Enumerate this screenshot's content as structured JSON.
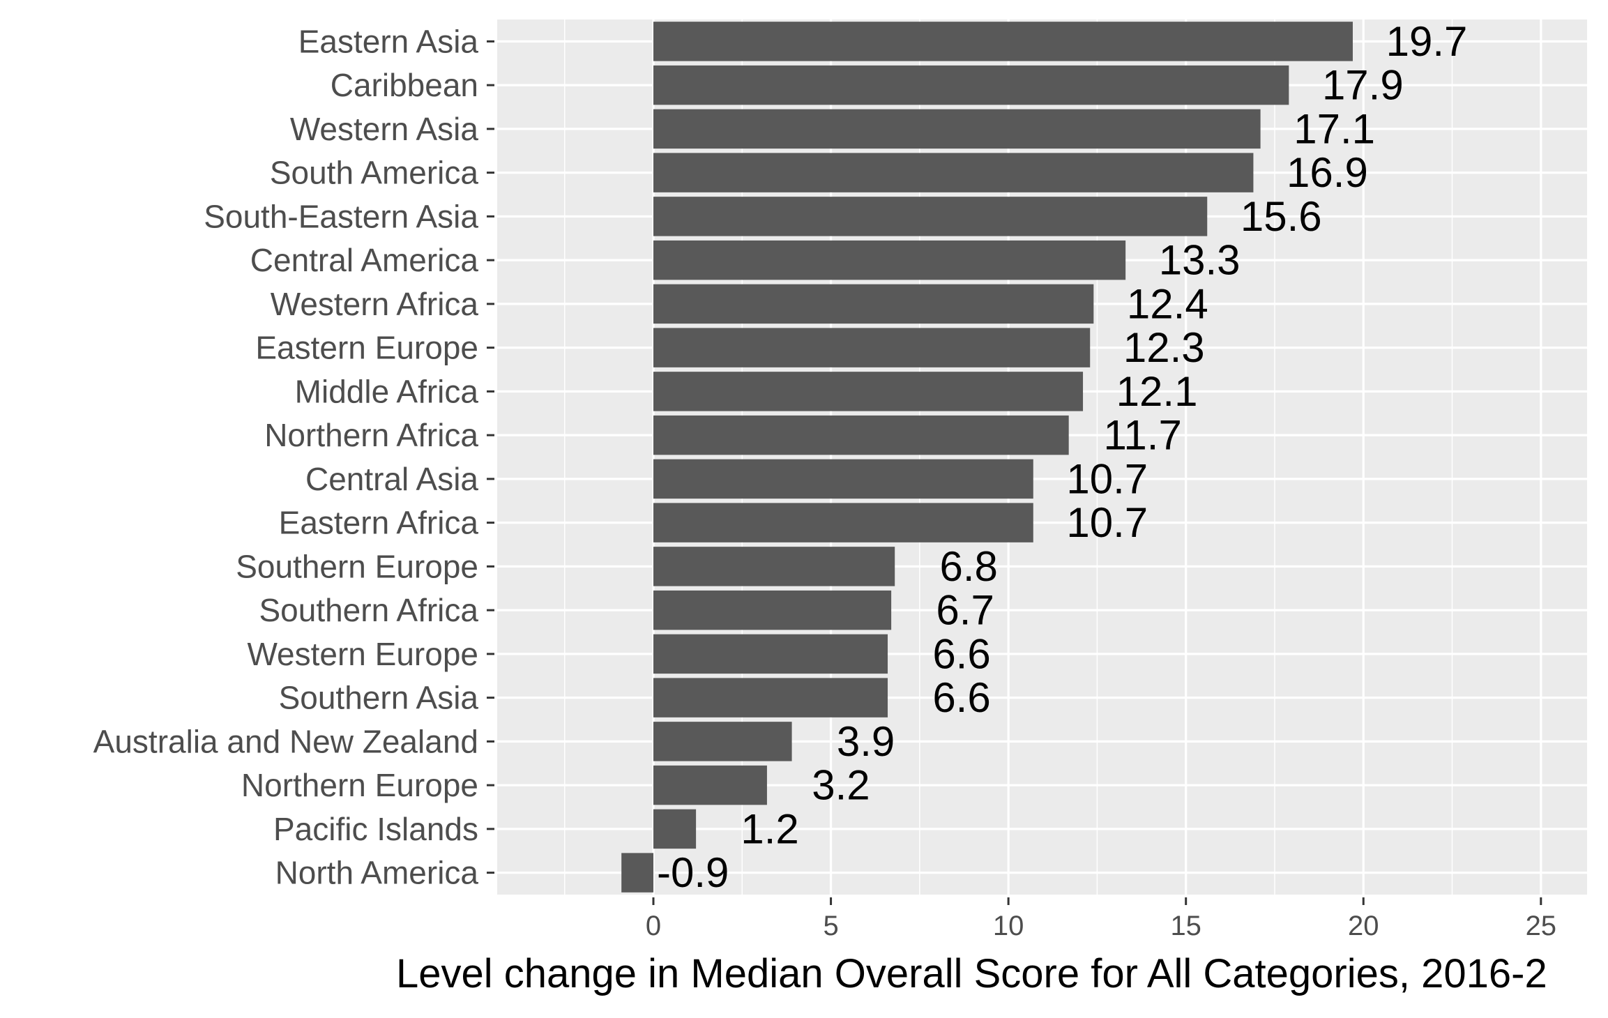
{
  "chart_data": {
    "type": "bar",
    "orientation": "horizontal",
    "title": "",
    "xlabel": "Level change in Median Overall Score for All Categories, 2016-2",
    "ylabel": "",
    "xlim": [
      -4.4,
      26.3
    ],
    "x_ticks": [
      0,
      5,
      10,
      15,
      20,
      25
    ],
    "grid": true,
    "legend": "none",
    "categories": [
      "Eastern Asia",
      "Caribbean",
      "Western Asia",
      "South America",
      "South-Eastern Asia",
      "Central America",
      "Western Africa",
      "Eastern Europe",
      "Middle Africa",
      "Northern Africa",
      "Central Asia",
      "Eastern Africa",
      "Southern Europe",
      "Southern Africa",
      "Western Europe",
      "Southern Asia",
      "Australia and New Zealand",
      "Northern Europe",
      "Pacific Islands",
      "North America"
    ],
    "values": [
      19.7,
      17.9,
      17.1,
      16.9,
      15.6,
      13.3,
      12.4,
      12.3,
      12.1,
      11.7,
      10.7,
      10.7,
      6.8,
      6.7,
      6.6,
      6.6,
      3.9,
      3.2,
      1.2,
      -0.9
    ],
    "value_labels": [
      "19.7",
      "17.9",
      "17.1",
      "16.9",
      "15.6",
      "13.3",
      "12.4",
      "12.3",
      "12.1",
      "11.7",
      "10.7",
      "10.7",
      "6.8",
      "6.7",
      "6.6",
      "6.6",
      "3.9",
      "3.2",
      "1.2",
      "-0.9"
    ],
    "colors": {
      "bar": "#595959",
      "panel": "#ebebeb",
      "grid": "#ffffff",
      "text": "#4d4d4d",
      "label": "#000000"
    }
  }
}
